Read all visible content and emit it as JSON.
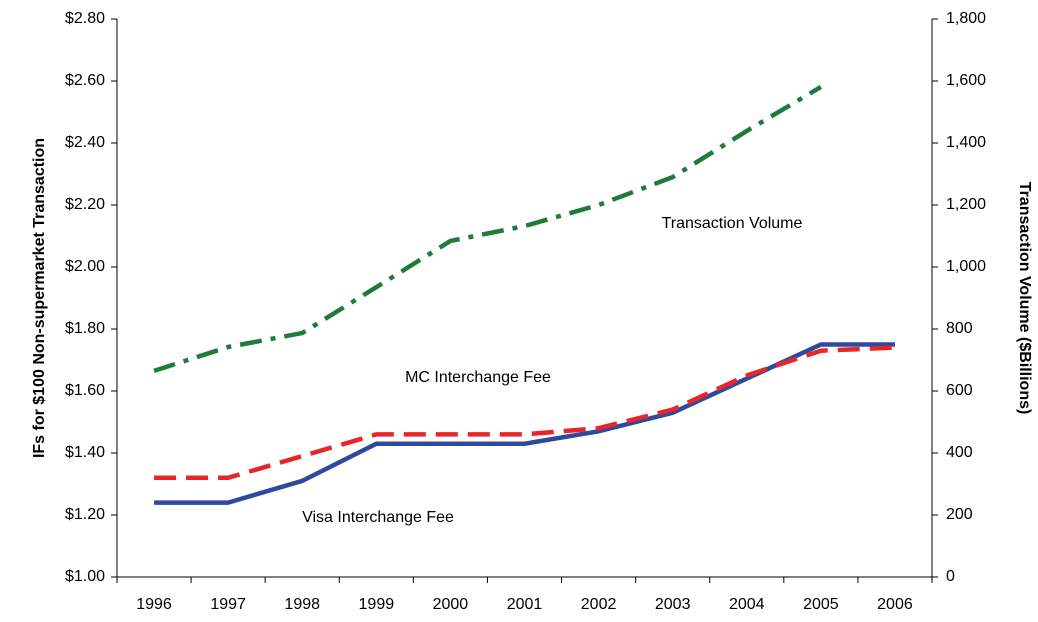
{
  "chart_data": {
    "type": "line",
    "y_label": "IFs for $100 Non-supermarket Transaction",
    "y2_label": "Transaction Volume ($Billions)",
    "categories": [
      "1996",
      "1997",
      "1998",
      "1999",
      "2000",
      "2001",
      "2002",
      "2003",
      "2004",
      "2005",
      "2006"
    ],
    "series": [
      {
        "name": "Visa Interchange Fee",
        "color": "#2e4a9e",
        "dash": "solid",
        "values": [
          1.24,
          1.24,
          1.31,
          1.43,
          1.43,
          1.43,
          1.47,
          1.53,
          1.64,
          1.75,
          1.75
        ]
      },
      {
        "name": "MC Interchange Fee",
        "color": "#e8262a",
        "dash": "dashed",
        "values": [
          1.32,
          1.32,
          1.39,
          1.46,
          1.46,
          1.46,
          1.48,
          1.54,
          1.65,
          1.73,
          1.74
        ]
      },
      {
        "name": "Transaction Volume",
        "color": "#1e7b3a",
        "dash": "dashdot",
        "axis": "y2",
        "values": [
          665,
          742,
          787,
          935,
          1084,
          1132,
          1200,
          1290,
          1439,
          1581,
          null
        ]
      }
    ],
    "ylim": [
      1.0,
      2.8
    ],
    "yticks": [
      {
        "value": 1.0,
        "label": "$1.00"
      },
      {
        "value": 1.2,
        "label": "$1.20"
      },
      {
        "value": 1.4,
        "label": "$1.40"
      },
      {
        "value": 1.6,
        "label": "$1.60"
      },
      {
        "value": 1.8,
        "label": "$1.80"
      },
      {
        "value": 2.0,
        "label": "$2.00"
      },
      {
        "value": 2.2,
        "label": "$2.20"
      },
      {
        "value": 2.4,
        "label": "$2.40"
      },
      {
        "value": 2.6,
        "label": "$2.60"
      },
      {
        "value": 2.8,
        "label": "$2.80"
      }
    ],
    "y2lim": [
      0,
      1800
    ],
    "y2ticks": [
      0,
      200,
      400,
      600,
      800,
      {
        "value": 1000,
        "label": "1,000"
      },
      {
        "value": 1200,
        "label": "1,200"
      },
      {
        "value": 1400,
        "label": "1,400"
      },
      {
        "value": 1600,
        "label": "1,600"
      },
      {
        "value": 1800,
        "label": "1,800"
      }
    ],
    "grid": false
  }
}
